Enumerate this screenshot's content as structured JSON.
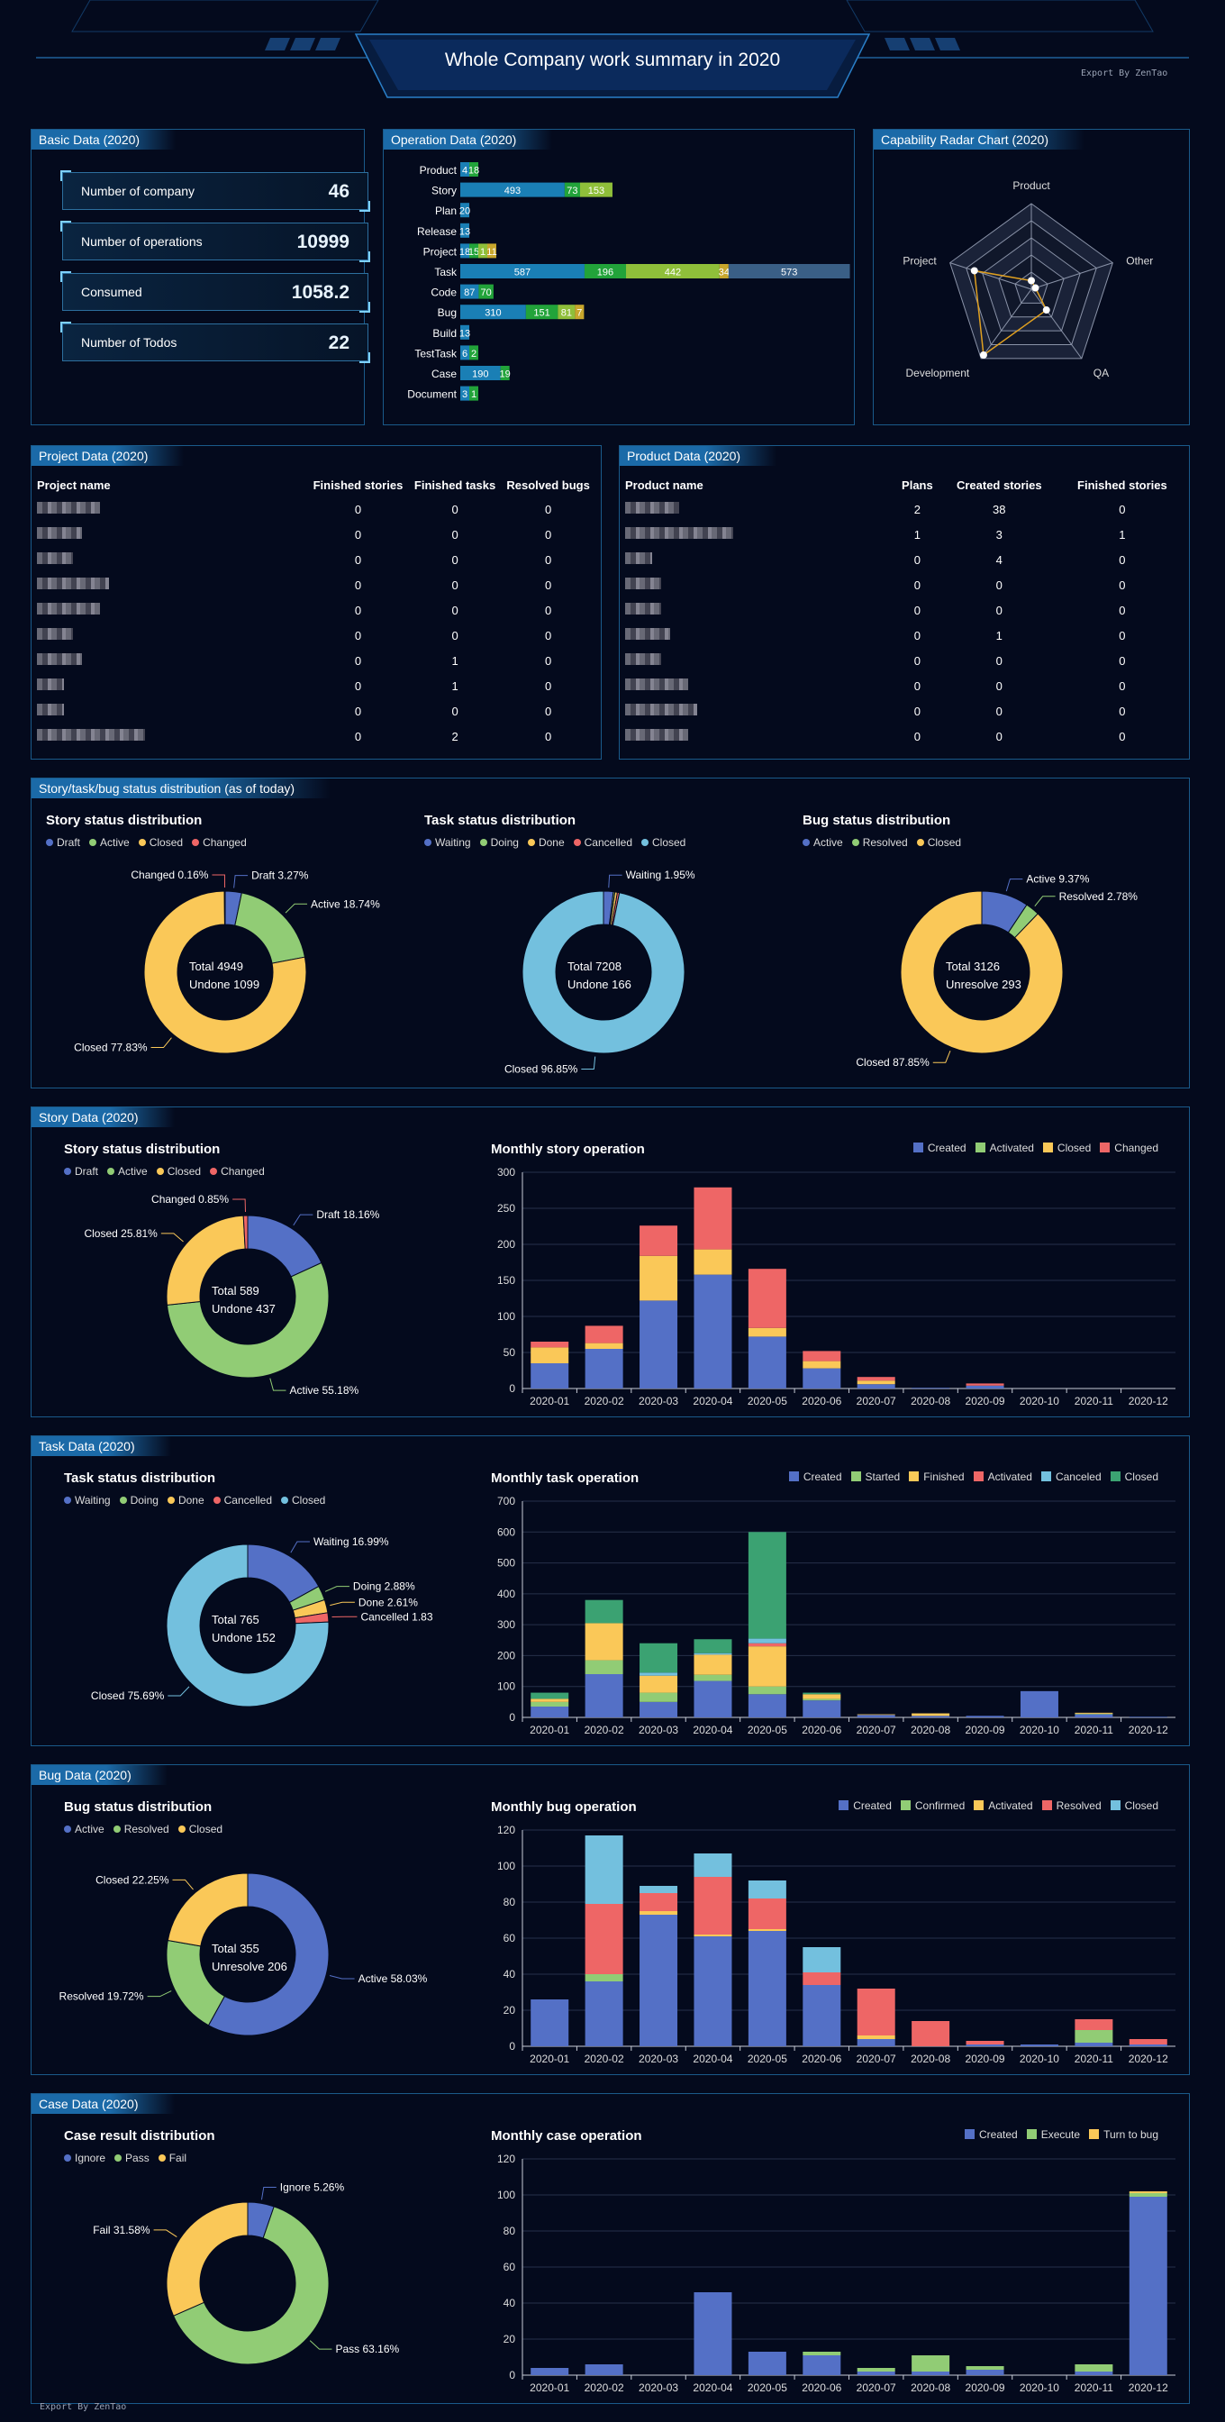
{
  "header": {
    "title": "Whole Company work summary in 2020",
    "export": "Export By ZenTao"
  },
  "footer": {
    "export": "Export By ZenTao"
  },
  "basic": {
    "title": "Basic Data (2020)",
    "cards": [
      {
        "label": "Number of company",
        "value": "46"
      },
      {
        "label": "Number of operations",
        "value": "10999"
      },
      {
        "label": "Consumed",
        "value": "1058.2"
      },
      {
        "label": "Number of Todos",
        "value": "22"
      }
    ]
  },
  "operation": {
    "title": "Operation Data (2020)",
    "colors": [
      "#1a7fb5",
      "#22a33a",
      "#8fbf3a",
      "#c8a62c",
      "#3a5f86"
    ],
    "rows": [
      {
        "label": "Product",
        "values": [
          4,
          18
        ]
      },
      {
        "label": "Story",
        "values": [
          493,
          73,
          153
        ]
      },
      {
        "label": "Plan",
        "values": [
          20
        ]
      },
      {
        "label": "Release",
        "values": [
          13
        ]
      },
      {
        "label": "Project",
        "values": [
          18,
          15,
          1,
          11
        ]
      },
      {
        "label": "Task",
        "values": [
          587,
          196,
          442,
          34,
          573
        ]
      },
      {
        "label": "Code",
        "values": [
          87,
          70
        ]
      },
      {
        "label": "Bug",
        "values": [
          310,
          151,
          81,
          7
        ]
      },
      {
        "label": "Build",
        "values": [
          13
        ]
      },
      {
        "label": "TestTask",
        "values": [
          6,
          2
        ]
      },
      {
        "label": "Case",
        "values": [
          190,
          19
        ]
      },
      {
        "label": "Document",
        "values": [
          3,
          1
        ]
      }
    ]
  },
  "radar": {
    "title": "Capability Radar Chart (2020)",
    "axes": [
      "Product",
      "Other",
      "QA",
      "Development",
      "Project"
    ],
    "values": [
      0.1,
      0.05,
      0.3,
      0.95,
      0.7
    ]
  },
  "project": {
    "title": "Project Data (2020)",
    "columns": [
      "Project name",
      "Finished stories",
      "Finished tasks",
      "Resolved bugs"
    ],
    "rows": [
      {
        "blur": 70,
        "c1": "0",
        "c2": "0",
        "c3": "0"
      },
      {
        "blur": 50,
        "c1": "0",
        "c2": "0",
        "c3": "0"
      },
      {
        "blur": 40,
        "c1": "0",
        "c2": "0",
        "c3": "0"
      },
      {
        "blur": 80,
        "c1": "0",
        "c2": "0",
        "c3": "0"
      },
      {
        "blur": 70,
        "c1": "0",
        "c2": "0",
        "c3": "0"
      },
      {
        "blur": 40,
        "c1": "0",
        "c2": "0",
        "c3": "0"
      },
      {
        "blur": 50,
        "c1": "0",
        "c2": "1",
        "c3": "0"
      },
      {
        "blur": 30,
        "c1": "0",
        "c2": "1",
        "c3": "0"
      },
      {
        "blur": 30,
        "c1": "0",
        "c2": "0",
        "c3": "0"
      },
      {
        "blur": 120,
        "c1": "0",
        "c2": "2",
        "c3": "0"
      }
    ]
  },
  "product": {
    "title": "Product Data (2020)",
    "columns": [
      "Product name",
      "Plans",
      "Created stories",
      "Finished stories"
    ],
    "rows": [
      {
        "blur": 60,
        "c1": "2",
        "c2": "38",
        "c3": "0"
      },
      {
        "blur": 120,
        "c1": "1",
        "c2": "3",
        "c3": "1"
      },
      {
        "blur": 30,
        "c1": "0",
        "c2": "4",
        "c3": "0"
      },
      {
        "blur": 40,
        "c1": "0",
        "c2": "0",
        "c3": "0"
      },
      {
        "blur": 40,
        "c1": "0",
        "c2": "0",
        "c3": "0"
      },
      {
        "blur": 50,
        "c1": "0",
        "c2": "1",
        "c3": "0"
      },
      {
        "blur": 40,
        "c1": "0",
        "c2": "0",
        "c3": "0"
      },
      {
        "blur": 70,
        "c1": "0",
        "c2": "0",
        "c3": "0"
      },
      {
        "blur": 80,
        "c1": "0",
        "c2": "0",
        "c3": "0"
      },
      {
        "blur": 70,
        "c1": "0",
        "c2": "0",
        "c3": "0"
      }
    ]
  },
  "status": {
    "title": "Story/task/bug status distribution (as of today)",
    "donuts": [
      {
        "title": "Story status distribution",
        "legend": [
          "Draft",
          "Active",
          "Closed",
          "Changed"
        ],
        "colors": [
          "#5470c6",
          "#91cc75",
          "#fac858",
          "#ee6666"
        ],
        "values": [
          3.27,
          18.74,
          77.83,
          0.16
        ],
        "labels": [
          "Draft  3.27%",
          "Active  18.74%",
          "Closed  77.83%",
          "Changed  0.16%"
        ],
        "center": [
          "Total    4949",
          "Undone   1099"
        ]
      },
      {
        "title": "Task status distribution",
        "legend": [
          "Waiting",
          "Doing",
          "Done",
          "Cancelled",
          "Closed"
        ],
        "colors": [
          "#5470c6",
          "#91cc75",
          "#fac858",
          "#ee6666",
          "#73c0de"
        ],
        "values": [
          1.95,
          0.3,
          0.5,
          0.4,
          96.85
        ],
        "labels": [
          "Waiting  1.95%",
          "",
          "",
          "",
          "Closed  96.85%"
        ],
        "center": [
          "Total    7208",
          "Undone    166"
        ]
      },
      {
        "title": "Bug status distribution",
        "legend": [
          "Active",
          "Resolved",
          "Closed"
        ],
        "colors": [
          "#5470c6",
          "#91cc75",
          "#fac858"
        ],
        "values": [
          9.37,
          2.78,
          87.85
        ],
        "labels": [
          "Active  9.37%",
          "Resolved  2.78%",
          "Closed  87.85%"
        ],
        "center": [
          "Total    3126",
          "Unresolve   293"
        ]
      }
    ]
  },
  "sections": [
    {
      "title": "Story Data (2020)",
      "donut": {
        "title": "Story status distribution",
        "legend": [
          "Draft",
          "Active",
          "Closed",
          "Changed"
        ],
        "colors": [
          "#5470c6",
          "#91cc75",
          "#fac858",
          "#ee6666"
        ],
        "values": [
          18.16,
          55.18,
          25.81,
          0.85
        ],
        "labels": [
          "Draft  18.16%",
          "Active  55.18%",
          "Closed  25.81%",
          "Changed  0.85%"
        ],
        "center": [
          "Total    589",
          "Undone    437"
        ]
      },
      "bar_title": "Monthly story operation"
    },
    {
      "title": "Task Data (2020)",
      "donut": {
        "title": "Task status distribution",
        "legend": [
          "Waiting",
          "Doing",
          "Done",
          "Cancelled",
          "Closed"
        ],
        "colors": [
          "#5470c6",
          "#91cc75",
          "#fac858",
          "#ee6666",
          "#73c0de"
        ],
        "values": [
          16.99,
          2.88,
          2.61,
          1.83,
          75.69
        ],
        "labels": [
          "Waiting  16.99%",
          "Doing  2.88%",
          "Done  2.61%",
          "Cancelled  1.83",
          "Closed  75.69%"
        ],
        "center": [
          "Total    765",
          "Undone    152"
        ]
      },
      "bar_title": "Monthly task operation"
    },
    {
      "title": "Bug Data (2020)",
      "donut": {
        "title": "Bug status distribution",
        "legend": [
          "Active",
          "Resolved",
          "Closed"
        ],
        "colors": [
          "#5470c6",
          "#91cc75",
          "#fac858"
        ],
        "values": [
          58.03,
          19.72,
          22.25
        ],
        "labels": [
          "Active  58.03%",
          "Resolved  19.72%",
          "Closed  22.25%"
        ],
        "center": [
          "Total    355",
          "Unresolve    206"
        ]
      },
      "bar_title": "Monthly bug operation"
    },
    {
      "title": "Case Data (2020)",
      "donut": {
        "title": "Case result distribution",
        "legend": [
          "Ignore",
          "Pass",
          "Fail"
        ],
        "colors": [
          "#5470c6",
          "#91cc75",
          "#fac858"
        ],
        "values": [
          5.26,
          63.16,
          31.58
        ],
        "labels": [
          "Ignore  5.26%",
          "Pass  63.16%",
          "Fail  31.58%"
        ],
        "center": [
          "",
          ""
        ]
      },
      "bar_title": "Monthly case operation"
    }
  ],
  "chart_data": [
    {
      "type": "bar",
      "title": "Monthly story operation",
      "categories": [
        "2020-01",
        "2020-02",
        "2020-03",
        "2020-04",
        "2020-05",
        "2020-06",
        "2020-07",
        "2020-08",
        "2020-09",
        "2020-10",
        "2020-11",
        "2020-12"
      ],
      "ylim": [
        0,
        300
      ],
      "yticks": [
        0,
        50,
        100,
        150,
        200,
        250,
        300
      ],
      "series": [
        {
          "name": "Created",
          "color": "#5470c6",
          "values": [
            35,
            55,
            122,
            158,
            72,
            28,
            6,
            1,
            4,
            0,
            0,
            0
          ]
        },
        {
          "name": "Activated",
          "color": "#91cc75",
          "values": [
            0,
            0,
            0,
            0,
            0,
            0,
            0,
            0,
            0,
            0,
            0,
            0
          ]
        },
        {
          "name": "Closed",
          "color": "#fac858",
          "values": [
            22,
            8,
            62,
            35,
            12,
            10,
            5,
            0,
            0,
            0,
            0,
            0
          ]
        },
        {
          "name": "Changed",
          "color": "#ee6666",
          "values": [
            8,
            24,
            42,
            86,
            82,
            14,
            5,
            0,
            3,
            0,
            0,
            0
          ]
        }
      ]
    },
    {
      "type": "bar",
      "title": "Monthly task operation",
      "categories": [
        "2020-01",
        "2020-02",
        "2020-03",
        "2020-04",
        "2020-05",
        "2020-06",
        "2020-07",
        "2020-08",
        "2020-09",
        "2020-10",
        "2020-11",
        "2020-12"
      ],
      "ylim": [
        0,
        700
      ],
      "yticks": [
        0,
        100,
        200,
        300,
        400,
        500,
        600,
        700
      ],
      "series": [
        {
          "name": "Created",
          "color": "#5470c6",
          "values": [
            35,
            140,
            50,
            118,
            75,
            55,
            8,
            5,
            5,
            85,
            10,
            2
          ]
        },
        {
          "name": "Started",
          "color": "#91cc75",
          "values": [
            15,
            45,
            30,
            20,
            25,
            5,
            0,
            0,
            0,
            0,
            2,
            0
          ]
        },
        {
          "name": "Finished",
          "color": "#fac858",
          "values": [
            10,
            120,
            55,
            65,
            130,
            15,
            2,
            8,
            0,
            0,
            3,
            0
          ]
        },
        {
          "name": "Activated",
          "color": "#ee6666",
          "values": [
            0,
            0,
            0,
            0,
            10,
            0,
            0,
            0,
            0,
            0,
            0,
            0
          ]
        },
        {
          "name": "Canceled",
          "color": "#73c0de",
          "values": [
            0,
            0,
            10,
            5,
            15,
            0,
            0,
            0,
            0,
            0,
            0,
            0
          ]
        },
        {
          "name": "Closed",
          "color": "#3ba272",
          "values": [
            20,
            75,
            95,
            45,
            345,
            5,
            0,
            0,
            0,
            0,
            0,
            0
          ]
        }
      ]
    },
    {
      "type": "bar",
      "title": "Monthly bug operation",
      "categories": [
        "2020-01",
        "2020-02",
        "2020-03",
        "2020-04",
        "2020-05",
        "2020-06",
        "2020-07",
        "2020-08",
        "2020-09",
        "2020-10",
        "2020-11",
        "2020-12"
      ],
      "ylim": [
        0,
        120
      ],
      "yticks": [
        0,
        20,
        40,
        60,
        80,
        100,
        120
      ],
      "series": [
        {
          "name": "Created",
          "color": "#5470c6",
          "values": [
            26,
            36,
            73,
            61,
            64,
            34,
            4,
            0,
            1,
            1,
            2,
            1
          ]
        },
        {
          "name": "Confirmed",
          "color": "#91cc75",
          "values": [
            0,
            4,
            0,
            0,
            0,
            0,
            0,
            0,
            0,
            0,
            7,
            0
          ]
        },
        {
          "name": "Activated",
          "color": "#fac858",
          "values": [
            0,
            0,
            2,
            1,
            1,
            0,
            2,
            0,
            0,
            0,
            0,
            0
          ]
        },
        {
          "name": "Resolved",
          "color": "#ee6666",
          "values": [
            0,
            39,
            10,
            32,
            17,
            7,
            26,
            14,
            2,
            0,
            6,
            3
          ]
        },
        {
          "name": "Closed",
          "color": "#73c0de",
          "values": [
            0,
            38,
            4,
            13,
            10,
            14,
            0,
            0,
            0,
            0,
            0,
            0
          ]
        }
      ]
    },
    {
      "type": "bar",
      "title": "Monthly case operation",
      "categories": [
        "2020-01",
        "2020-02",
        "2020-03",
        "2020-04",
        "2020-05",
        "2020-06",
        "2020-07",
        "2020-08",
        "2020-09",
        "2020-10",
        "2020-11",
        "2020-12"
      ],
      "ylim": [
        0,
        120
      ],
      "yticks": [
        0,
        20,
        40,
        60,
        80,
        100,
        120
      ],
      "series": [
        {
          "name": "Created",
          "color": "#5470c6",
          "values": [
            4,
            6,
            0,
            46,
            13,
            11,
            2,
            2,
            3,
            0,
            2,
            99
          ]
        },
        {
          "name": "Execute",
          "color": "#91cc75",
          "values": [
            0,
            0,
            0,
            0,
            0,
            2,
            2,
            9,
            2,
            0,
            4,
            2
          ]
        },
        {
          "name": "Turn to bug",
          "color": "#fac858",
          "values": [
            0,
            0,
            0,
            0,
            0,
            0,
            0,
            0,
            0,
            0,
            0,
            1
          ]
        }
      ]
    }
  ]
}
